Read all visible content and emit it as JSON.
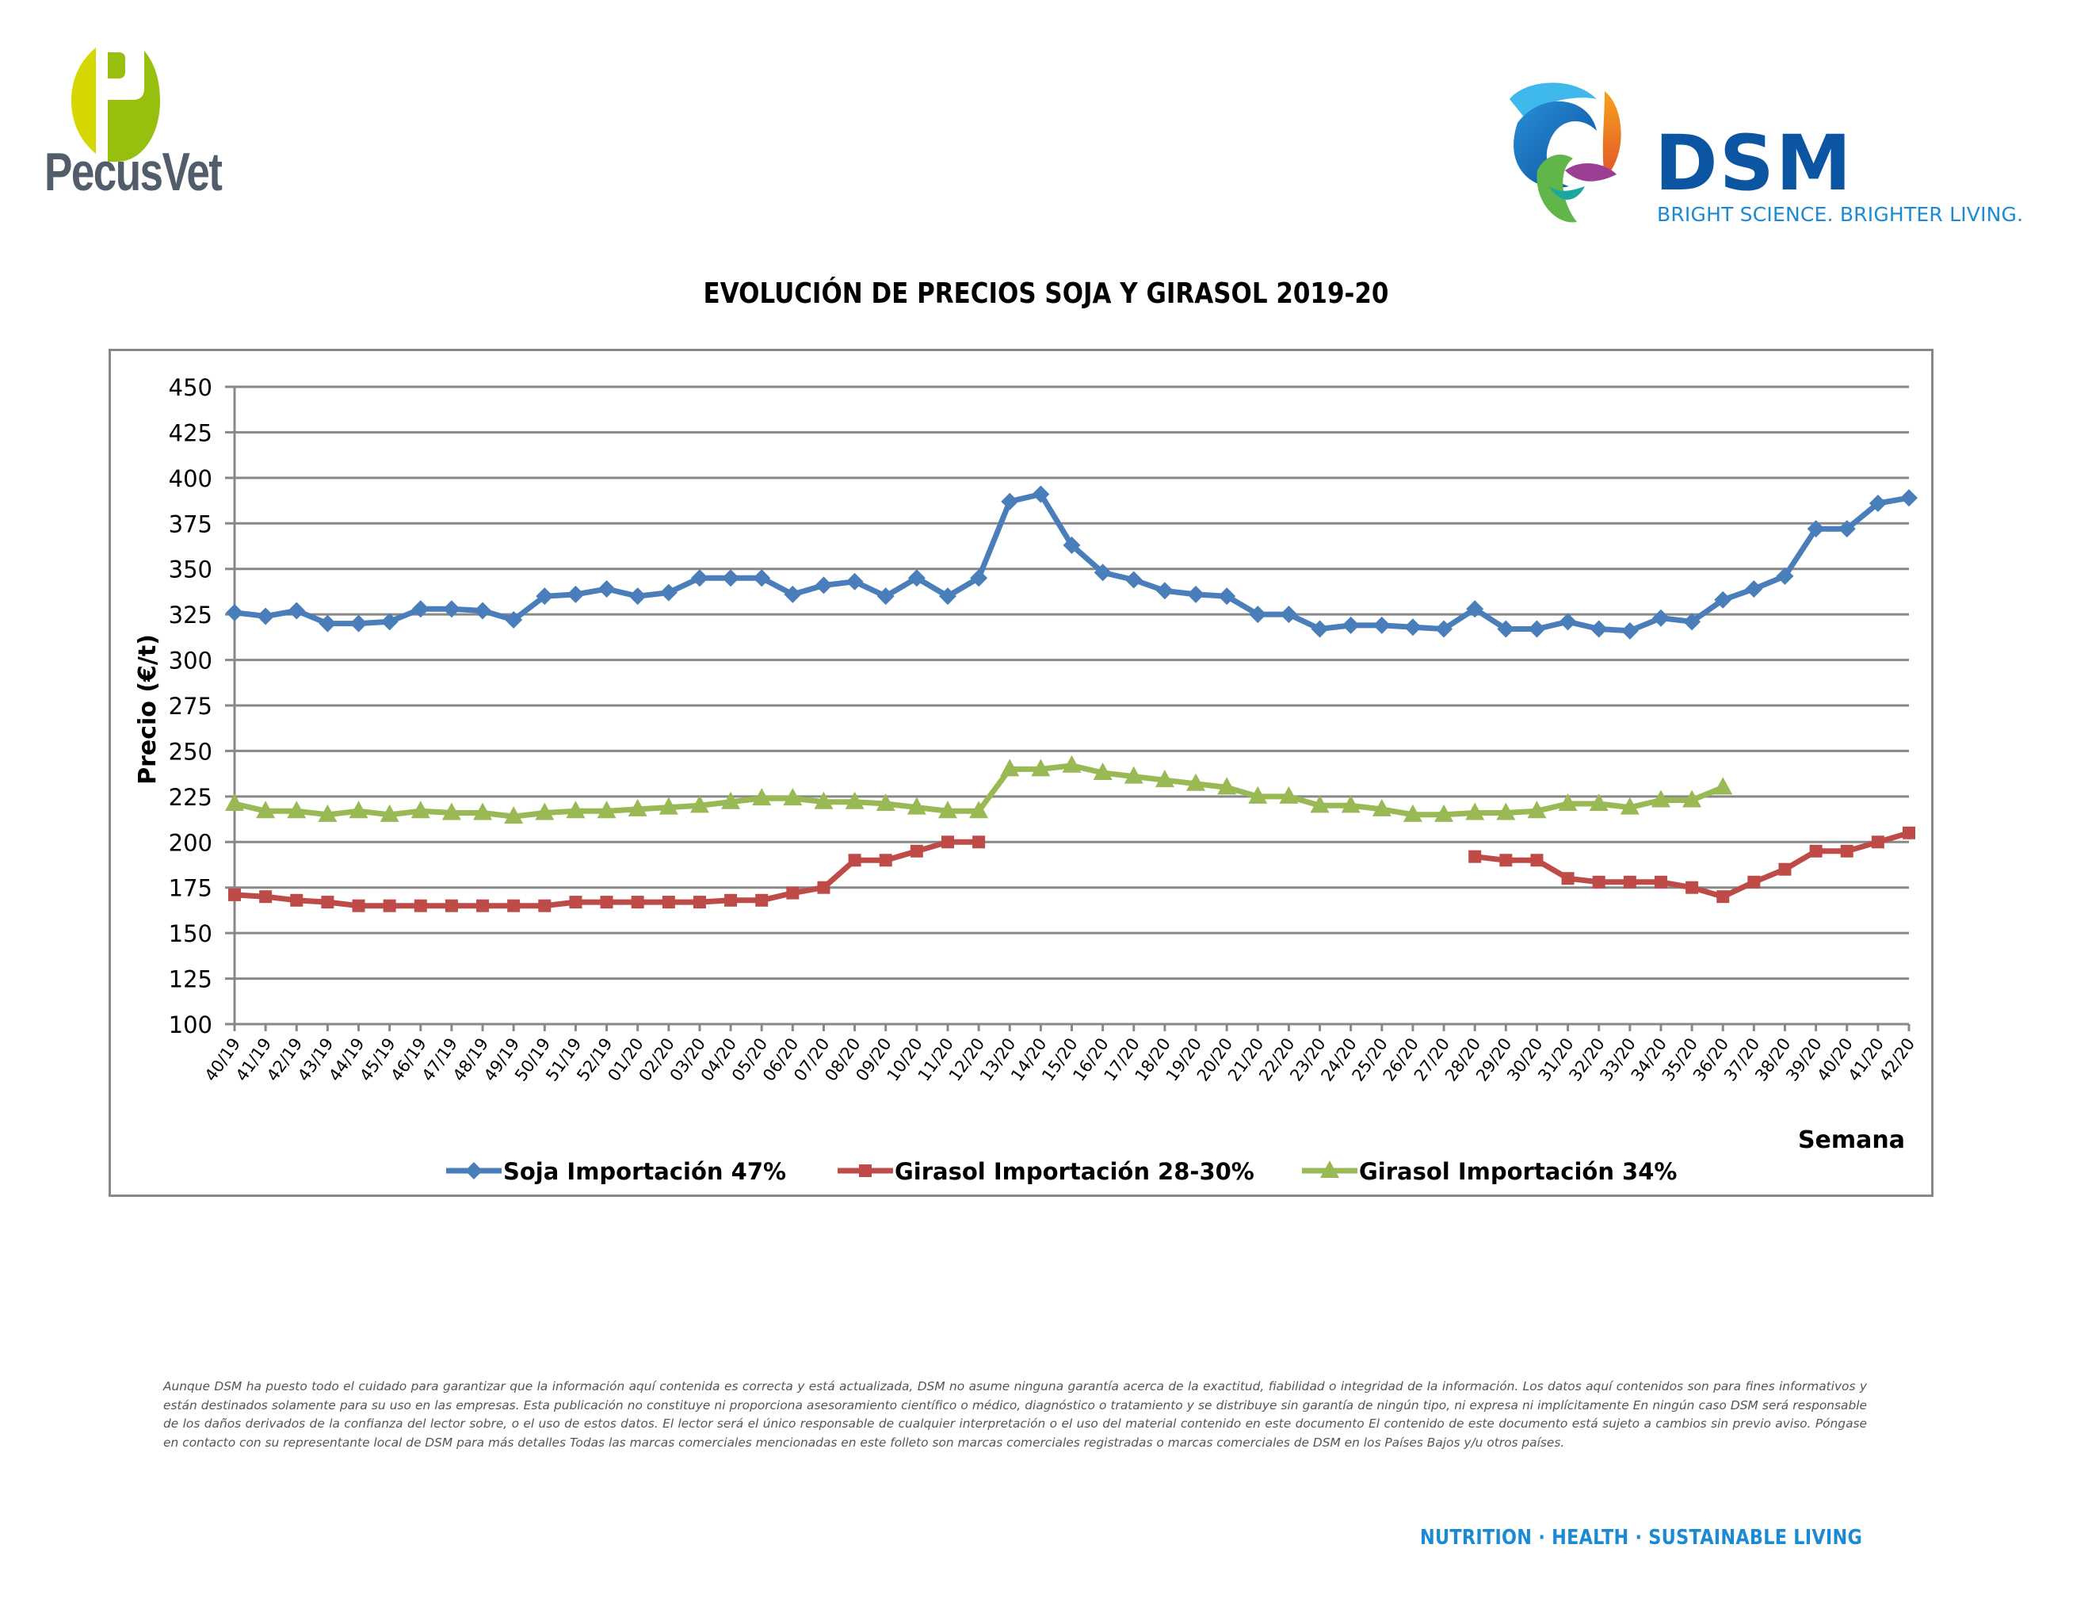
{
  "header": {
    "left_logo_text": "PecusVet",
    "right_logo_name": "DSM",
    "right_logo_tagline": "BRIGHT SCIENCE. BRIGHTER LIVING."
  },
  "colors": {
    "soja": "#4a7ebb",
    "girasol_28_30": "#be4b48",
    "girasol_34": "#98b954",
    "grid": "#888888",
    "pecus_light": "#d4d800",
    "pecus_dark": "#97bf0d",
    "dsm_blue": "#0b55a3",
    "dsm_light_blue": "#1a8ad4"
  },
  "chart_data": {
    "type": "line",
    "title": "EVOLUCIÓN DE PRECIOS SOJA Y GIRASOL 2019-20",
    "xlabel": "Semana",
    "ylabel": "Precio (€/t)",
    "ylim": [
      100,
      450
    ],
    "yticks": [
      "100",
      "125",
      "150",
      "175",
      "200",
      "225",
      "250",
      "275",
      "300",
      "325",
      "350",
      "375",
      "400",
      "425",
      "450"
    ],
    "grid": true,
    "legend_position": "bottom",
    "categories": [
      "40/19",
      "41/19",
      "42/19",
      "43/19",
      "44/19",
      "45/19",
      "46/19",
      "47/19",
      "48/19",
      "49/19",
      "50/19",
      "51/19",
      "52/19",
      "01/20",
      "02/20",
      "03/20",
      "04/20",
      "05/20",
      "06/20",
      "07/20",
      "08/20",
      "09/20",
      "10/20",
      "11/20",
      "12/20",
      "13/20",
      "14/20",
      "15/20",
      "16/20",
      "17/20",
      "18/20",
      "19/20",
      "20/20",
      "21/20",
      "22/20",
      "23/20",
      "24/20",
      "25/20",
      "26/20",
      "27/20",
      "28/20",
      "29/20",
      "30/20",
      "31/20",
      "32/20",
      "33/20",
      "34/20",
      "35/20",
      "36/20",
      "37/20",
      "38/20",
      "39/20",
      "40/20",
      "41/20",
      "42/20"
    ],
    "series": [
      {
        "name": "Soja Importación 47%",
        "marker": "diamond",
        "values": [
          326,
          324,
          327,
          320,
          320,
          321,
          328,
          328,
          327,
          322,
          335,
          336,
          339,
          335,
          337,
          345,
          345,
          345,
          336,
          341,
          343,
          335,
          345,
          335,
          345,
          387,
          391,
          363,
          348,
          344,
          338,
          336,
          335,
          325,
          325,
          317,
          319,
          319,
          318,
          317,
          328,
          317,
          317,
          321,
          317,
          316,
          323,
          321,
          333,
          339,
          346,
          372,
          372,
          386,
          389
        ]
      },
      {
        "name": "Girasol Importación 28-30%",
        "marker": "square",
        "values": [
          171,
          170,
          168,
          167,
          165,
          165,
          165,
          165,
          165,
          165,
          165,
          167,
          167,
          167,
          167,
          167,
          168,
          168,
          172,
          175,
          190,
          190,
          195,
          200,
          200,
          null,
          null,
          null,
          null,
          null,
          null,
          null,
          null,
          null,
          null,
          null,
          null,
          null,
          null,
          null,
          192,
          190,
          190,
          180,
          178,
          178,
          178,
          175,
          170,
          178,
          185,
          195,
          195,
          200,
          205
        ]
      },
      {
        "name": "Girasol Importación 34%",
        "marker": "triangle",
        "values": [
          221,
          217,
          217,
          215,
          217,
          215,
          217,
          216,
          216,
          214,
          216,
          217,
          217,
          218,
          219,
          220,
          222,
          224,
          224,
          222,
          222,
          221,
          219,
          217,
          217,
          240,
          240,
          242,
          238,
          236,
          234,
          232,
          230,
          225,
          225,
          220,
          220,
          218,
          215,
          215,
          216,
          216,
          217,
          221,
          221,
          219,
          223,
          223,
          230,
          null,
          null,
          null,
          null,
          null,
          null
        ]
      }
    ]
  },
  "disclaimer": "Aunque DSM ha puesto todo el cuidado para garantizar que la información aquí contenida es correcta y está actualizada, DSM no asume ninguna garantía acerca de la exactitud, fiabilidad o integridad de la información. Los datos aquí contenidos son para fines informativos y están destinados solamente para su uso en las empresas. Esta publicación no constituye ni proporciona asesoramiento científico o médico, diagnóstico o tratamiento y se distribuye sin garantía de ningún tipo, ni expresa ni implícitamente En ningún caso DSM será responsable de los daños derivados de la confianza del lector sobre, o el uso de estos datos. El lector será el único responsable de cualquier interpretación o el uso del material contenido en este documento El contenido de este documento está sujeto a cambios sin previo aviso. Póngase en contacto con su representante local de DSM para más detalles Todas las marcas comerciales mencionadas en este folleto son marcas comerciales registradas o marcas comerciales de DSM en los Países Bajos y/u otros países.",
  "footer": {
    "tagline": "NUTRITION  ·  HEALTH  ·  SUSTAINABLE LIVING"
  }
}
